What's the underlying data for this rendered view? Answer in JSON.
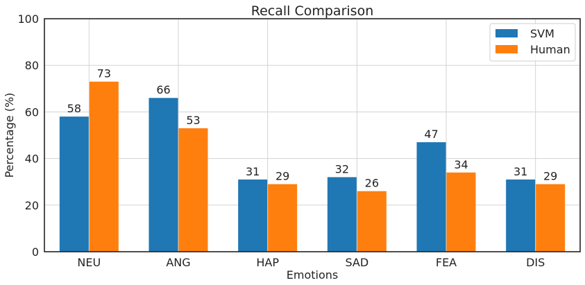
{
  "chart_data": {
    "type": "bar",
    "title": "Recall Comparison",
    "xlabel": "Emotions",
    "ylabel": "Percentage (%)",
    "categories": [
      "NEU",
      "ANG",
      "HAP",
      "SAD",
      "FEA",
      "DIS"
    ],
    "series": [
      {
        "name": "SVM",
        "values": [
          58,
          66,
          31,
          32,
          47,
          31
        ],
        "color": "#1f77b4"
      },
      {
        "name": "Human",
        "values": [
          73,
          53,
          29,
          26,
          34,
          29
        ],
        "color": "#ff7f0e"
      }
    ],
    "ylim": [
      0,
      100
    ],
    "yticks": [
      0,
      20,
      40,
      60,
      80,
      100
    ],
    "grid": true,
    "legend_position": "top-right"
  }
}
